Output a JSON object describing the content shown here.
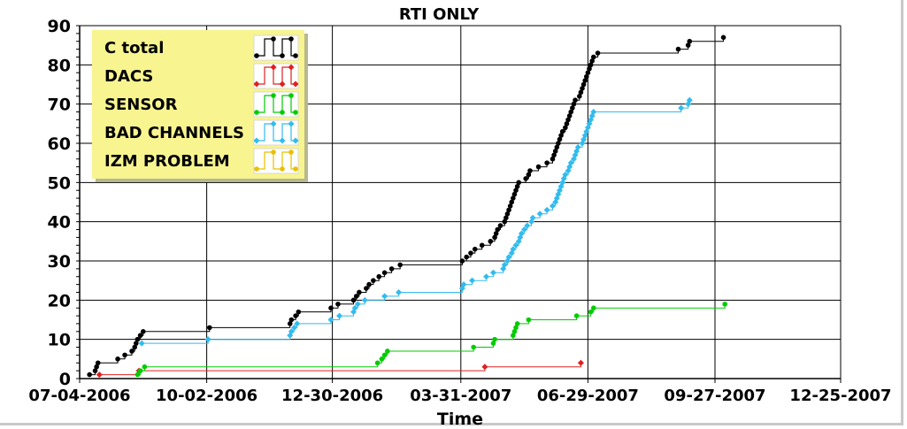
{
  "chart_data": {
    "type": "line",
    "step": true,
    "title": "RTI ONLY",
    "xlabel": "Time",
    "ylabel": "",
    "x_type": "date",
    "xlim": [
      "2006-07-04",
      "2007-12-25"
    ],
    "ylim": [
      0,
      90
    ],
    "x_ticks": [
      "2006-07-04",
      "2006-10-02",
      "2006-12-30",
      "2007-03-31",
      "2007-06-29",
      "2007-09-27",
      "2007-12-25"
    ],
    "x_tick_labels": [
      "07-04-2006",
      "10-02-2006",
      "12-30-2006",
      "03-31-2007",
      "06-29-2007",
      "09-27-2007",
      "12-25-2007"
    ],
    "y_ticks": [
      0,
      10,
      20,
      30,
      40,
      50,
      60,
      70,
      80,
      90
    ],
    "y_tick_labels": [
      "0",
      "10",
      "20",
      "30",
      "40",
      "50",
      "60",
      "70",
      "80",
      "90"
    ],
    "grid": true,
    "legend_position": "top-left",
    "series": [
      {
        "name": "C total",
        "color": "#000000",
        "marker": "circle",
        "points": [
          [
            "2006-07-11",
            1
          ],
          [
            "2006-07-15",
            2
          ],
          [
            "2006-07-16",
            3
          ],
          [
            "2006-07-17",
            4
          ],
          [
            "2006-07-31",
            5
          ],
          [
            "2006-08-05",
            6
          ],
          [
            "2006-08-10",
            7
          ],
          [
            "2006-08-12",
            8
          ],
          [
            "2006-08-13",
            9
          ],
          [
            "2006-08-14",
            10
          ],
          [
            "2006-08-16",
            11
          ],
          [
            "2006-08-18",
            12
          ],
          [
            "2006-10-04",
            13
          ],
          [
            "2006-11-30",
            14
          ],
          [
            "2006-12-01",
            15
          ],
          [
            "2006-12-04",
            16
          ],
          [
            "2006-12-06",
            17
          ],
          [
            "2006-12-29",
            18
          ],
          [
            "2007-01-03",
            19
          ],
          [
            "2007-01-14",
            20
          ],
          [
            "2007-01-16",
            21
          ],
          [
            "2007-01-18",
            22
          ],
          [
            "2007-01-23",
            23
          ],
          [
            "2007-01-25",
            24
          ],
          [
            "2007-01-28",
            25
          ],
          [
            "2007-02-01",
            26
          ],
          [
            "2007-02-05",
            27
          ],
          [
            "2007-02-10",
            28
          ],
          [
            "2007-02-16",
            29
          ],
          [
            "2007-04-01",
            30
          ],
          [
            "2007-04-04",
            31
          ],
          [
            "2007-04-07",
            32
          ],
          [
            "2007-04-10",
            33
          ],
          [
            "2007-04-15",
            34
          ],
          [
            "2007-04-21",
            35
          ],
          [
            "2007-04-24",
            36
          ],
          [
            "2007-04-25",
            37
          ],
          [
            "2007-04-26",
            38
          ],
          [
            "2007-04-28",
            39
          ],
          [
            "2007-05-01",
            40
          ],
          [
            "2007-05-02",
            41
          ],
          [
            "2007-05-03",
            42
          ],
          [
            "2007-05-04",
            43
          ],
          [
            "2007-05-05",
            44
          ],
          [
            "2007-05-06",
            45
          ],
          [
            "2007-05-07",
            46
          ],
          [
            "2007-05-08",
            47
          ],
          [
            "2007-05-09",
            48
          ],
          [
            "2007-05-10",
            49
          ],
          [
            "2007-05-11",
            50
          ],
          [
            "2007-05-16",
            51
          ],
          [
            "2007-05-18",
            52
          ],
          [
            "2007-05-19",
            53
          ],
          [
            "2007-05-25",
            54
          ],
          [
            "2007-05-31",
            55
          ],
          [
            "2007-06-04",
            56
          ],
          [
            "2007-06-05",
            57
          ],
          [
            "2007-06-06",
            58
          ],
          [
            "2007-06-07",
            59
          ],
          [
            "2007-06-08",
            60
          ],
          [
            "2007-06-09",
            61
          ],
          [
            "2007-06-10",
            62
          ],
          [
            "2007-06-11",
            63
          ],
          [
            "2007-06-13",
            64
          ],
          [
            "2007-06-14",
            65
          ],
          [
            "2007-06-15",
            66
          ],
          [
            "2007-06-16",
            67
          ],
          [
            "2007-06-17",
            68
          ],
          [
            "2007-06-18",
            69
          ],
          [
            "2007-06-19",
            70
          ],
          [
            "2007-06-20",
            71
          ],
          [
            "2007-06-23",
            72
          ],
          [
            "2007-06-24",
            73
          ],
          [
            "2007-06-25",
            74
          ],
          [
            "2007-06-26",
            75
          ],
          [
            "2007-06-27",
            76
          ],
          [
            "2007-06-28",
            77
          ],
          [
            "2007-06-29",
            78
          ],
          [
            "2007-06-30",
            79
          ],
          [
            "2007-07-01",
            80
          ],
          [
            "2007-07-02",
            81
          ],
          [
            "2007-07-03",
            82
          ],
          [
            "2007-07-06",
            83
          ],
          [
            "2007-09-01",
            84
          ],
          [
            "2007-09-08",
            85
          ],
          [
            "2007-09-09",
            86
          ],
          [
            "2007-10-03",
            87
          ]
        ]
      },
      {
        "name": "DACS",
        "color": "#e02020",
        "marker": "diamond",
        "points": [
          [
            "2006-07-18",
            1
          ],
          [
            "2006-08-15",
            2
          ],
          [
            "2007-04-17",
            3
          ],
          [
            "2007-06-24",
            4
          ]
        ]
      },
      {
        "name": "SENSOR",
        "color": "#00cc00",
        "marker": "circle",
        "points": [
          [
            "2006-08-14",
            1
          ],
          [
            "2006-08-16",
            2
          ],
          [
            "2006-08-19",
            3
          ],
          [
            "2007-01-31",
            4
          ],
          [
            "2007-02-03",
            5
          ],
          [
            "2007-02-05",
            6
          ],
          [
            "2007-02-07",
            7
          ],
          [
            "2007-04-09",
            8
          ],
          [
            "2007-04-23",
            9
          ],
          [
            "2007-04-24",
            10
          ],
          [
            "2007-05-07",
            11
          ],
          [
            "2007-05-08",
            12
          ],
          [
            "2007-05-09",
            13
          ],
          [
            "2007-05-10",
            14
          ],
          [
            "2007-05-18",
            15
          ],
          [
            "2007-06-21",
            16
          ],
          [
            "2007-07-01",
            17
          ],
          [
            "2007-07-03",
            18
          ],
          [
            "2007-10-04",
            19
          ]
        ]
      },
      {
        "name": "BAD CHANNELS",
        "color": "#33bbee",
        "marker": "diamond",
        "points": [
          [
            "2006-08-17",
            9
          ],
          [
            "2006-10-03",
            10
          ],
          [
            "2006-11-30",
            11
          ],
          [
            "2006-12-01",
            12
          ],
          [
            "2006-12-03",
            13
          ],
          [
            "2006-12-05",
            14
          ],
          [
            "2006-12-29",
            15
          ],
          [
            "2007-01-04",
            16
          ],
          [
            "2007-01-14",
            17
          ],
          [
            "2007-01-15",
            18
          ],
          [
            "2007-01-17",
            19
          ],
          [
            "2007-01-22",
            20
          ],
          [
            "2007-02-05",
            21
          ],
          [
            "2007-02-15",
            22
          ],
          [
            "2007-04-01",
            23
          ],
          [
            "2007-04-02",
            24
          ],
          [
            "2007-04-08",
            25
          ],
          [
            "2007-04-18",
            26
          ],
          [
            "2007-04-23",
            27
          ],
          [
            "2007-04-30",
            28
          ],
          [
            "2007-05-01",
            29
          ],
          [
            "2007-05-03",
            30
          ],
          [
            "2007-05-04",
            31
          ],
          [
            "2007-05-06",
            32
          ],
          [
            "2007-05-07",
            33
          ],
          [
            "2007-05-09",
            34
          ],
          [
            "2007-05-11",
            35
          ],
          [
            "2007-05-12",
            36
          ],
          [
            "2007-05-13",
            37
          ],
          [
            "2007-05-15",
            38
          ],
          [
            "2007-05-17",
            39
          ],
          [
            "2007-05-20",
            40
          ],
          [
            "2007-05-21",
            41
          ],
          [
            "2007-05-26",
            42
          ],
          [
            "2007-05-31",
            43
          ],
          [
            "2007-06-04",
            44
          ],
          [
            "2007-06-06",
            45
          ],
          [
            "2007-06-07",
            46
          ],
          [
            "2007-06-08",
            47
          ],
          [
            "2007-06-09",
            48
          ],
          [
            "2007-06-10",
            49
          ],
          [
            "2007-06-11",
            50
          ],
          [
            "2007-06-12",
            51
          ],
          [
            "2007-06-13",
            52
          ],
          [
            "2007-06-15",
            53
          ],
          [
            "2007-06-16",
            54
          ],
          [
            "2007-06-17",
            55
          ],
          [
            "2007-06-19",
            56
          ],
          [
            "2007-06-20",
            57
          ],
          [
            "2007-06-21",
            58
          ],
          [
            "2007-06-22",
            59
          ],
          [
            "2007-06-25",
            60
          ],
          [
            "2007-06-26",
            61
          ],
          [
            "2007-06-27",
            62
          ],
          [
            "2007-06-28",
            63
          ],
          [
            "2007-06-29",
            64
          ],
          [
            "2007-06-30",
            65
          ],
          [
            "2007-07-01",
            66
          ],
          [
            "2007-07-02",
            67
          ],
          [
            "2007-07-03",
            68
          ],
          [
            "2007-09-03",
            69
          ],
          [
            "2007-09-08",
            70
          ],
          [
            "2007-09-09",
            71
          ]
        ]
      },
      {
        "name": "IZM PROBLEM",
        "color": "#e8c000",
        "marker": "circle",
        "points": []
      }
    ]
  }
}
